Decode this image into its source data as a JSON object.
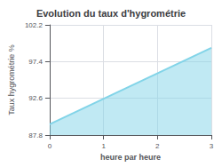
{
  "chart_data": {
    "type": "area",
    "title": "Evolution du taux d'hygrométrie",
    "xlabel": "heure par heure",
    "ylabel": "Taux hygrométrie %",
    "x": [
      0,
      3
    ],
    "values": [
      89.2,
      99.2
    ],
    "color": "#82d4e8",
    "xlim": [
      0,
      3
    ],
    "ylim": [
      87.8,
      102.2
    ],
    "xticks": [
      0,
      1,
      2,
      3
    ],
    "yticks": [
      87.8,
      92.6,
      97.4,
      102.2
    ],
    "grid": true
  }
}
